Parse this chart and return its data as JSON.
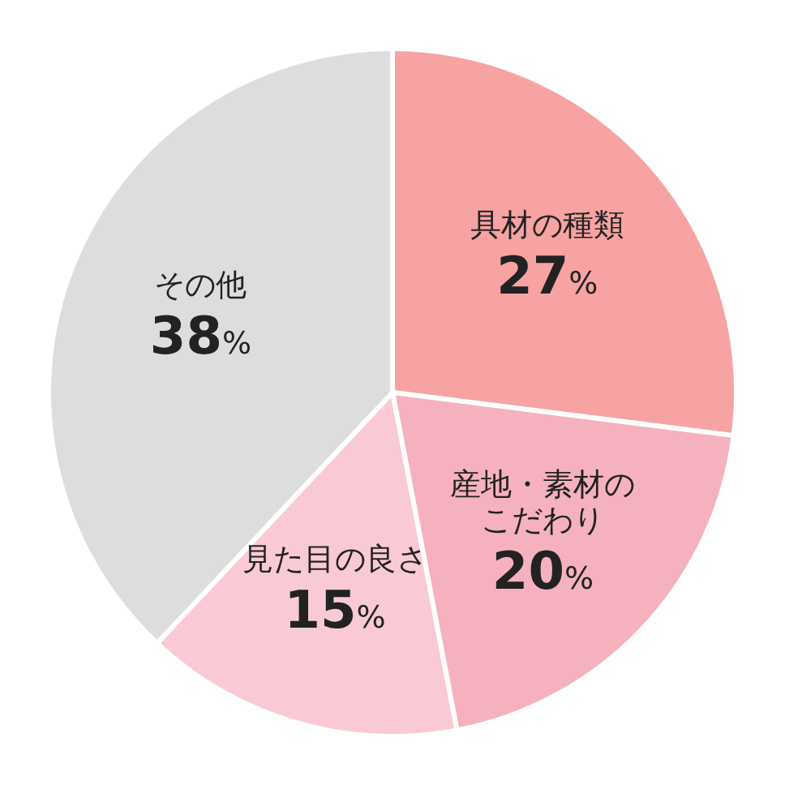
{
  "chart_data": {
    "type": "pie",
    "categories": [
      "具材の種類",
      "産地・素材のこだわり",
      "見た目の良さ",
      "その他"
    ],
    "values": [
      27,
      20,
      15,
      38
    ],
    "value_labels": [
      "27%",
      "20%",
      "15%",
      "38%"
    ],
    "colors": [
      "#f7a3a3",
      "#f5b2be",
      "#f9cad5",
      "#dddddd"
    ]
  }
}
